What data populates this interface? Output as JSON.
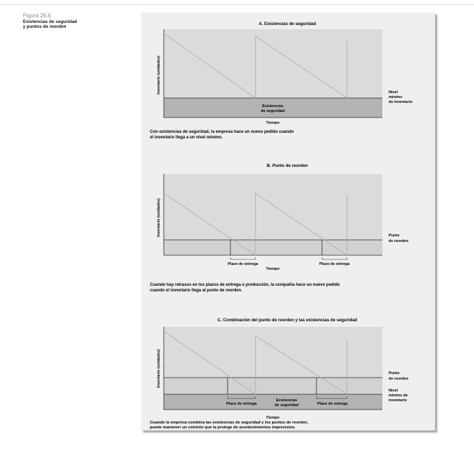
{
  "figure": {
    "number": "Figura 26.6",
    "title_lines": [
      "Existencias de seguridad",
      "y puntos de reorden"
    ]
  },
  "panels": [
    {
      "title": "A. Existencias de seguridad",
      "ylabel": "Inventario (unidades)",
      "xlabel": "Tiempo",
      "right_labels": [
        "Nivel",
        "mínimo",
        "de inventario"
      ],
      "band_labels": [
        "Existencias",
        "de seguridad"
      ],
      "description": [
        "Con existencias de seguridad, la empresa hace un nuevo pedido cuando",
        "el inventario llega a un nivel mínimo."
      ]
    },
    {
      "title": "B. Punto de reorden",
      "ylabel": "Inventario (unidades)",
      "xlabel": "Tiempo",
      "right_labels": [
        "Punto",
        "de reorden"
      ],
      "lead_labels": [
        "Plazo de entrega",
        "Plazo de entrega"
      ],
      "description": [
        "Cuando hay retrasos en los plazos de entrega o producción, la compañía hace un nuevo pedido",
        "cuando el inventario llega al punto de reorden."
      ]
    },
    {
      "title": "C. Combinación del punto de reorden y las existencias de seguridad",
      "ylabel": "Inventario (unidades)",
      "xlabel": "Tiempo",
      "right_labels_top": [
        "Punto",
        "de reorden"
      ],
      "right_labels_bottom": [
        "Nivel",
        "mínimo de",
        "inventario"
      ],
      "lead_labels": [
        "Plazo de entrega",
        "Plazo de entrega"
      ],
      "band_labels": [
        "Existencias",
        "de seguridad"
      ],
      "description": [
        "Cuando la empresa combina las existencias de seguridad y los puntos de reorden,",
        "puede mantener un colchón que la protege de acontecimientos imprevistos."
      ]
    }
  ],
  "colors": {
    "plot_bg": "#dcdbdb",
    "band_light": "#d3d2d2",
    "band_dark": "#b4b3b3",
    "line": "#b0b0b0",
    "axis": "#222222"
  }
}
